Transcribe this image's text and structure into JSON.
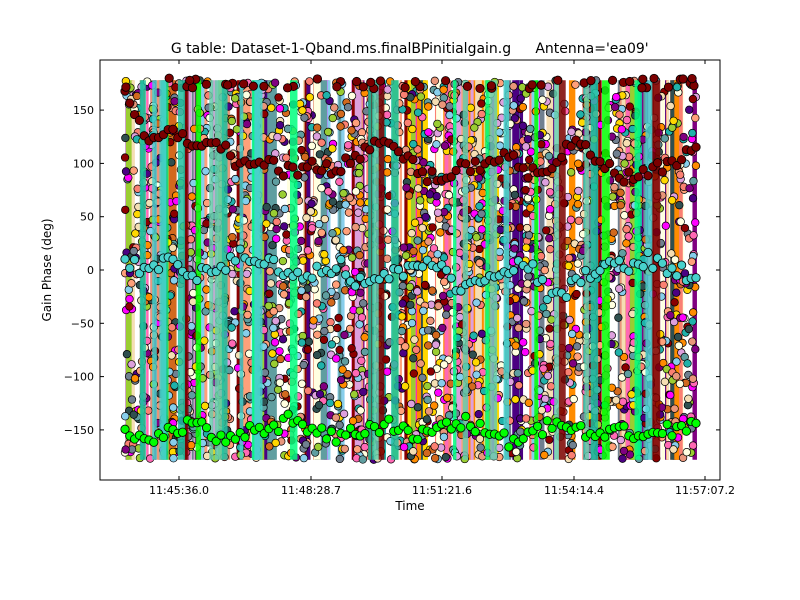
{
  "chart_data": {
    "type": "scatter",
    "title_left": "G table: Dataset-1-Qband.ms.finalBPinitialgain.g",
    "title_right": "Antenna='ea09'",
    "xlabel": "Time",
    "ylabel": "Gain Phase (deg)",
    "x_tick_labels": [
      "11:45:36.0",
      "11:48:28.7",
      "11:51:21.6",
      "11:54:14.4",
      "11:57:07.2"
    ],
    "y_ticks": [
      150,
      100,
      50,
      0,
      -50,
      -100,
      -150
    ],
    "y_tick_labels": [
      "150",
      "100",
      "50",
      "0",
      "−50",
      "−100",
      "−150"
    ],
    "ylim": [
      -197,
      197
    ],
    "x_range_labels": [
      "11:44:00",
      "11:57:20"
    ],
    "grid": false,
    "legend": "none",
    "colors": {
      "background_fill": [
        "#8b0000",
        "#800080",
        "#ff69b4",
        "#20b2aa",
        "#ffa07a",
        "#d2691e",
        "#87ceeb",
        "#ffffe0",
        "#ff00ff",
        "#4b0082",
        "#2f4f4f",
        "#ffd700",
        "#708090",
        "#fa8072",
        "#ff8c00",
        "#e9967a",
        "#9acd32",
        "#5f9ea0",
        "#dda0dd",
        "#f5deb3"
      ],
      "highlight_series": [
        "#00ff00",
        "#48d1cc",
        "#7b0000",
        "#20c0a0",
        "#00ff7f",
        "#66cdaa"
      ]
    },
    "series": [
      {
        "color": "#7b0000",
        "pattern": "upper wrap band near +170 and +100",
        "values": [
          170,
          120,
          130,
          110,
          120,
          95,
          105,
          90,
          100,
          95,
          110,
          120,
          100,
          85,
          95,
          100,
          110,
          90,
          100,
          120,
          100,
          85,
          90,
          100,
          110
        ]
      },
      {
        "color": "#48d1cc",
        "pattern": "middle band near 0",
        "values": [
          5,
          0,
          10,
          -5,
          0,
          15,
          10,
          -10,
          0,
          5,
          -15,
          -5,
          0,
          10,
          -20,
          -5,
          0,
          5,
          -30,
          -10,
          0,
          5,
          10,
          0,
          -5
        ]
      },
      {
        "color": "#00ff00",
        "pattern": "lower band near -150",
        "values": [
          -155,
          -160,
          -150,
          -145,
          -160,
          -150,
          -155,
          -140,
          -150,
          -160,
          -150,
          -145,
          -155,
          -150,
          -140,
          -150,
          -160,
          -155,
          -145,
          -150,
          -160,
          -150,
          -155,
          -150,
          -145
        ]
      }
    ]
  }
}
